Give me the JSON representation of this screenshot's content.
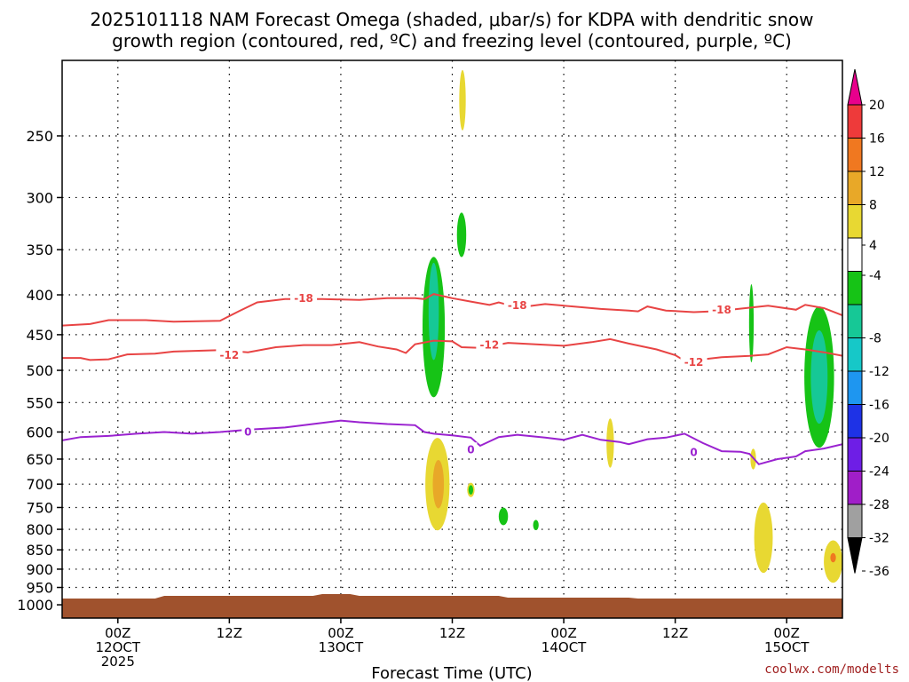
{
  "chart_data": {
    "type": "contour",
    "title_line1": "2025101118 NAM Forecast Omega (shaded, μbar/s) for KDPA with dendritic snow",
    "title_line2": "growth region (contoured, red, ºC) and freezing level (contoured, purple, ºC)",
    "xlabel": "Forecast Time (UTC)",
    "credit": "coolwx.com/modelts",
    "yticks": [
      250,
      300,
      350,
      400,
      450,
      500,
      550,
      600,
      650,
      700,
      750,
      800,
      850,
      900,
      950,
      1000
    ],
    "xticks": [
      {
        "h": 6,
        "line1": "00Z",
        "line2": "12OCT",
        "line3": "2025"
      },
      {
        "h": 18,
        "line1": "12Z",
        "line2": "",
        "line3": ""
      },
      {
        "h": 30,
        "line1": "00Z",
        "line2": "13OCT",
        "line3": ""
      },
      {
        "h": 42,
        "line1": "12Z",
        "line2": "",
        "line3": ""
      },
      {
        "h": 54,
        "line1": "00Z",
        "line2": "14OCT",
        "line3": ""
      },
      {
        "h": 66,
        "line1": "12Z",
        "line2": "",
        "line3": ""
      },
      {
        "h": 78,
        "line1": "00Z",
        "line2": "15OCT",
        "line3": ""
      }
    ],
    "xlim": [
      0,
      84
    ],
    "ylim": [
      1040,
      200
    ],
    "grid": true,
    "colorbar": {
      "labels": [
        "20",
        "16",
        "12",
        "8",
        "4",
        "-4",
        "-8",
        "-12",
        "-16",
        "-20",
        "-24",
        "-28",
        "-32",
        "-36"
      ],
      "colors": [
        "#e8008c",
        "#ee3a3a",
        "#f07820",
        "#e8a828",
        "#e8d832",
        "#ffffff",
        "#16c316",
        "#16c896",
        "#16c8c8",
        "#1e96f0",
        "#1e32e6",
        "#6e1ee6",
        "#a01ec8",
        "#a0a0a0",
        "#000000"
      ]
    },
    "contours": [
      {
        "color": "#e84444",
        "label": "-18",
        "labels_at": [
          [
            26,
            404
          ],
          [
            49,
            413
          ],
          [
            71,
            418
          ]
        ],
        "points": [
          [
            0,
            438
          ],
          [
            3,
            436
          ],
          [
            5,
            431
          ],
          [
            9,
            431
          ],
          [
            12,
            433
          ],
          [
            17,
            432
          ],
          [
            19,
            420
          ],
          [
            21,
            409
          ],
          [
            24,
            405
          ],
          [
            28,
            405
          ],
          [
            32,
            406
          ],
          [
            35,
            404
          ],
          [
            38,
            404
          ],
          [
            39,
            405
          ],
          [
            40,
            399
          ],
          [
            42,
            404
          ],
          [
            44,
            408
          ],
          [
            46,
            412
          ],
          [
            47,
            409
          ],
          [
            48,
            412
          ],
          [
            50,
            414
          ],
          [
            52,
            411
          ],
          [
            55,
            414
          ],
          [
            58,
            417
          ],
          [
            61,
            419
          ],
          [
            62,
            420
          ],
          [
            63,
            414
          ],
          [
            65,
            419
          ],
          [
            68,
            421
          ],
          [
            70,
            420
          ],
          [
            72,
            418
          ],
          [
            76,
            413
          ],
          [
            79,
            418
          ],
          [
            80,
            412
          ],
          [
            82,
            416
          ],
          [
            84,
            425
          ]
        ]
      },
      {
        "color": "#e84444",
        "label": "-12",
        "labels_at": [
          [
            18,
            478
          ],
          [
            46,
            464
          ],
          [
            68,
            488
          ]
        ],
        "points": [
          [
            0,
            482
          ],
          [
            2,
            482
          ],
          [
            3,
            485
          ],
          [
            5,
            484
          ],
          [
            7,
            477
          ],
          [
            10,
            476
          ],
          [
            12,
            473
          ],
          [
            17,
            471
          ],
          [
            20,
            474
          ],
          [
            23,
            467
          ],
          [
            26,
            464
          ],
          [
            29,
            464
          ],
          [
            32,
            460
          ],
          [
            34,
            466
          ],
          [
            36,
            470
          ],
          [
            37,
            475
          ],
          [
            38,
            463
          ],
          [
            40,
            458
          ],
          [
            42,
            459
          ],
          [
            43,
            467
          ],
          [
            45,
            468
          ],
          [
            48,
            461
          ],
          [
            51,
            463
          ],
          [
            54,
            465
          ],
          [
            57,
            460
          ],
          [
            59,
            456
          ],
          [
            61,
            462
          ],
          [
            64,
            470
          ],
          [
            66,
            478
          ],
          [
            67,
            486
          ],
          [
            69,
            484
          ],
          [
            71,
            481
          ],
          [
            74,
            479
          ],
          [
            76,
            477
          ],
          [
            78,
            467
          ],
          [
            80,
            470
          ],
          [
            82,
            474
          ],
          [
            84,
            479
          ]
        ]
      },
      {
        "color": "#9a22d0",
        "label": "0",
        "labels_at": [
          [
            20,
            600
          ],
          [
            44,
            632
          ],
          [
            68,
            637
          ]
        ],
        "points": [
          [
            0,
            615
          ],
          [
            2,
            609
          ],
          [
            5,
            607
          ],
          [
            8,
            603
          ],
          [
            11,
            600
          ],
          [
            14,
            603
          ],
          [
            17,
            600
          ],
          [
            20,
            596
          ],
          [
            24,
            592
          ],
          [
            27,
            586
          ],
          [
            30,
            580
          ],
          [
            32,
            583
          ],
          [
            35,
            586
          ],
          [
            38,
            588
          ],
          [
            39,
            600
          ],
          [
            40,
            603
          ],
          [
            42,
            606
          ],
          [
            44,
            610
          ],
          [
            45,
            625
          ],
          [
            47,
            609
          ],
          [
            49,
            605
          ],
          [
            52,
            610
          ],
          [
            54,
            614
          ],
          [
            56,
            605
          ],
          [
            58,
            614
          ],
          [
            60,
            618
          ],
          [
            61,
            622
          ],
          [
            63,
            613
          ],
          [
            65,
            610
          ],
          [
            67,
            603
          ],
          [
            69,
            620
          ],
          [
            71,
            635
          ],
          [
            73,
            636
          ],
          [
            74,
            640
          ],
          [
            75,
            660
          ],
          [
            77,
            650
          ],
          [
            79,
            645
          ],
          [
            80,
            635
          ],
          [
            82,
            630
          ],
          [
            84,
            622
          ]
        ]
      }
    ],
    "omega_regions": [
      {
        "color": "#e8d832",
        "center": [
          43.1,
          225
        ],
        "rx": 0.35,
        "ry_hpa": 20
      },
      {
        "color": "#16c316",
        "center": [
          40,
          440
        ],
        "rx": 1.2,
        "ry_hpa": 90
      },
      {
        "color": "#16c896",
        "center": [
          40,
          420
        ],
        "rx": 0.55,
        "ry_hpa": 60
      },
      {
        "color": "#16c316",
        "center": [
          43,
          335
        ],
        "rx": 0.5,
        "ry_hpa": 22
      },
      {
        "color": "#e8d832",
        "center": [
          40.4,
          700
        ],
        "rx": 1.3,
        "ry_hpa": 95
      },
      {
        "color": "#e8a828",
        "center": [
          40.5,
          700
        ],
        "rx": 0.6,
        "ry_hpa": 50
      },
      {
        "color": "#e8d832",
        "center": [
          44,
          712
        ],
        "rx": 0.4,
        "ry_hpa": 15
      },
      {
        "color": "#16c316",
        "center": [
          44,
          712
        ],
        "rx": 0.25,
        "ry_hpa": 10
      },
      {
        "color": "#16c316",
        "center": [
          47.5,
          770
        ],
        "rx": 0.5,
        "ry_hpa": 20
      },
      {
        "color": "#16c316",
        "center": [
          51,
          790
        ],
        "rx": 0.3,
        "ry_hpa": 12
      },
      {
        "color": "#e8d832",
        "center": [
          59,
          620
        ],
        "rx": 0.4,
        "ry_hpa": 45
      },
      {
        "color": "#16c316",
        "center": [
          74.2,
          435
        ],
        "rx": 0.25,
        "ry_hpa": 50
      },
      {
        "color": "#e8d832",
        "center": [
          74.4,
          650
        ],
        "rx": 0.3,
        "ry_hpa": 20
      },
      {
        "color": "#e8d832",
        "center": [
          75.5,
          820
        ],
        "rx": 1.0,
        "ry_hpa": 85
      },
      {
        "color": "#16c316",
        "center": [
          81.5,
          510
        ],
        "rx": 1.6,
        "ry_hpa": 105
      },
      {
        "color": "#16c896",
        "center": [
          81.5,
          510
        ],
        "rx": 0.9,
        "ry_hpa": 70
      },
      {
        "color": "#e8d832",
        "center": [
          83,
          880
        ],
        "rx": 1.0,
        "ry_hpa": 55
      },
      {
        "color": "#f07820",
        "center": [
          83,
          870
        ],
        "rx": 0.3,
        "ry_hpa": 12
      }
    ],
    "terrain_color": "#a0522d"
  }
}
